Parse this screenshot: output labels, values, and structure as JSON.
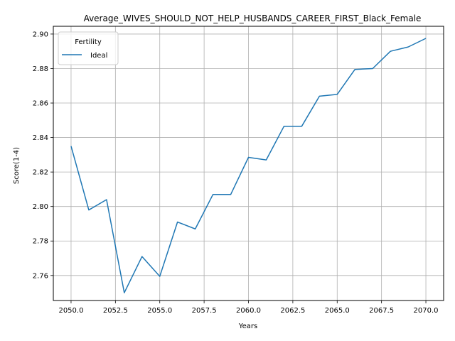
{
  "chart_data": {
    "type": "line",
    "title": "Average_WIVES_SHOULD_NOT_HELP_HUSBANDS_CAREER_FIRST_Black_Female",
    "xlabel": "Years",
    "ylabel": "Score(1-4)",
    "xlim": [
      2049,
      2071
    ],
    "ylim": [
      2.7455,
      2.9045
    ],
    "x_ticks": [
      2050.0,
      2052.5,
      2055.0,
      2057.5,
      2060.0,
      2062.5,
      2065.0,
      2067.5,
      2070.0
    ],
    "x_tick_labels": [
      "2050.0",
      "2052.5",
      "2055.0",
      "2057.5",
      "2060.0",
      "2062.5",
      "2065.0",
      "2067.5",
      "2070.0"
    ],
    "y_ticks": [
      2.76,
      2.78,
      2.8,
      2.82,
      2.84,
      2.86,
      2.88,
      2.9
    ],
    "y_tick_labels": [
      "2.76",
      "2.78",
      "2.80",
      "2.82",
      "2.84",
      "2.86",
      "2.88",
      "2.90"
    ],
    "grid": true,
    "legend": {
      "title": "Fertility",
      "position": "top-left"
    },
    "series": [
      {
        "name": "Ideal",
        "color": "#1f77b4",
        "x": [
          2050,
          2051,
          2052,
          2053,
          2054,
          2055,
          2056,
          2057,
          2058,
          2059,
          2060,
          2061,
          2062,
          2063,
          2064,
          2065,
          2066,
          2067,
          2068,
          2069,
          2070
        ],
        "y": [
          2.835,
          2.798,
          2.804,
          2.75,
          2.771,
          2.7595,
          2.791,
          2.787,
          2.807,
          2.807,
          2.8285,
          2.827,
          2.8465,
          2.8465,
          2.864,
          2.865,
          2.8795,
          2.88,
          2.89,
          2.8925,
          2.8975
        ]
      }
    ]
  }
}
